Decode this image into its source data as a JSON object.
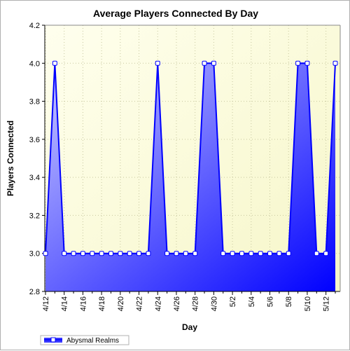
{
  "chart_data": {
    "type": "area",
    "title": "Average Players Connected By Day",
    "xlabel": "Day",
    "ylabel": "Players Connected",
    "ylim": [
      2.8,
      4.2
    ],
    "yticks": [
      "2.8",
      "3.0",
      "3.2",
      "3.4",
      "3.6",
      "3.8",
      "4.0",
      "4.2"
    ],
    "xtick_labels": [
      "4/12",
      "4/14",
      "4/16",
      "4/18",
      "4/20",
      "4/22",
      "4/24",
      "4/26",
      "4/28",
      "4/30",
      "5/2",
      "5/4",
      "5/6",
      "5/8",
      "5/10",
      "5/12"
    ],
    "grid": true,
    "legend_position": "bottom-left",
    "series": [
      {
        "name": "Abysmal Realms",
        "x": [
          "4/12",
          "4/13",
          "4/14",
          "4/15",
          "4/16",
          "4/17",
          "4/18",
          "4/19",
          "4/20",
          "4/21",
          "4/22",
          "4/23",
          "4/24",
          "4/25",
          "4/26",
          "4/27",
          "4/28",
          "4/29",
          "4/30",
          "5/1",
          "5/2",
          "5/3",
          "5/4",
          "5/5",
          "5/6",
          "5/7",
          "5/8",
          "5/9",
          "5/10",
          "5/11",
          "5/12",
          "5/13"
        ],
        "values": [
          3.0,
          4.0,
          3.0,
          3.0,
          3.0,
          3.0,
          3.0,
          3.0,
          3.0,
          3.0,
          3.0,
          3.0,
          4.0,
          3.0,
          3.0,
          3.0,
          3.0,
          4.0,
          4.0,
          3.0,
          3.0,
          3.0,
          3.0,
          3.0,
          3.0,
          3.0,
          3.0,
          4.0,
          4.0,
          3.0,
          3.0,
          4.0
        ]
      }
    ],
    "colors": {
      "plot_bg_light": "#ffffee",
      "plot_bg_dark": "#f6f6c8",
      "area_light": "#c8c8ff",
      "area_dark": "#0000ff",
      "line": "#0000ff",
      "marker_fill": "#ffffff",
      "grid": "#c8c8a0"
    }
  }
}
